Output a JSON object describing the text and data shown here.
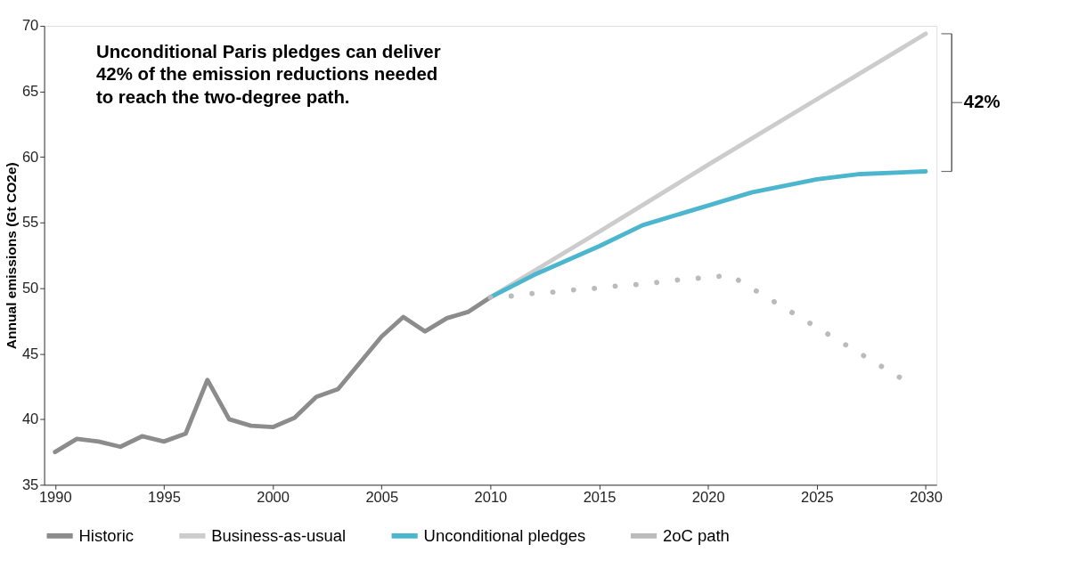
{
  "chart_data": {
    "type": "line",
    "ylabel": "Annual emissions (Gt CO2e)",
    "xlim": [
      1989.5,
      2030.5
    ],
    "xticks": [
      1990,
      1995,
      2000,
      2005,
      2010,
      2015,
      2020,
      2025,
      2030
    ],
    "ylim": [
      35,
      70
    ],
    "yticks": [
      35,
      40,
      45,
      50,
      55,
      60,
      65,
      70
    ],
    "grid": false,
    "legend": "bottom",
    "marker": "none",
    "series": [
      {
        "name": "Historic",
        "color": "#8c8c8c",
        "line_style": "solid",
        "x": [
          1990,
          1991,
          1992,
          1993,
          1994,
          1995,
          1996,
          1997,
          1998,
          1999,
          2000,
          2001,
          2002,
          2003,
          2004,
          2005,
          2006,
          2007,
          2008,
          2009,
          2010
        ],
        "values": [
          37.5,
          38.5,
          38.3,
          37.9,
          38.7,
          38.3,
          38.9,
          43.0,
          40.0,
          39.5,
          39.4,
          40.1,
          41.7,
          42.3,
          44.3,
          46.3,
          47.8,
          46.7,
          47.7,
          48.2,
          49.3
        ]
      },
      {
        "name": "Business-as-usual",
        "color": "#cccccc",
        "line_style": "solid",
        "x": [
          2010,
          2015,
          2020,
          2025,
          2030
        ],
        "values": [
          49.3,
          54.3,
          59.4,
          64.4,
          69.4
        ]
      },
      {
        "name": "Unconditional pledges",
        "color": "#4db6cf",
        "line_style": "solid",
        "x": [
          2010,
          2012,
          2015,
          2017,
          2020,
          2022,
          2025,
          2027,
          2030
        ],
        "values": [
          49.3,
          51.0,
          53.2,
          54.8,
          56.3,
          57.3,
          58.3,
          58.7,
          58.9
        ]
      },
      {
        "name": "2oC path",
        "color": "#bbbbbb",
        "line_style": "dotted",
        "x": [
          2010,
          2011,
          2012,
          2013,
          2014,
          2015,
          2016,
          2017,
          2018,
          2019,
          2020,
          2021,
          2022,
          2023,
          2024,
          2025,
          2026,
          2027,
          2028,
          2029
        ],
        "values": [
          49.3,
          49.4,
          49.6,
          49.7,
          49.9,
          50.0,
          50.2,
          50.3,
          50.5,
          50.7,
          50.8,
          51.0,
          50.0,
          49.0,
          48.0,
          47.0,
          46.0,
          45.0,
          44.0,
          43.0
        ]
      }
    ],
    "annotations": [
      "Unconditional Paris pledges can deliver\n42% of the emission reductions needed\nto reach the two-degree path.",
      "42%"
    ]
  }
}
